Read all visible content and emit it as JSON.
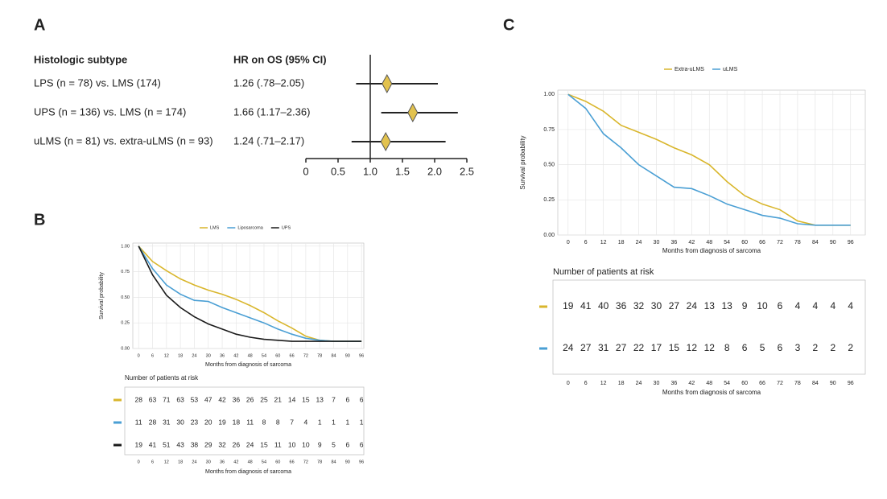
{
  "chart_data": [
    {
      "type": "forest",
      "panel": "A",
      "headers": [
        "Histologic subtype",
        "HR on OS (95% CI)"
      ],
      "categories": [
        "LPS (n = 78) vs. LMS (174)",
        "UPS (n = 136) vs. LMS (n = 174)",
        "uLMS (n = 81) vs. extra-uLMS (n = 93)"
      ],
      "values": [
        1.26,
        1.66,
        1.24
      ],
      "value_labels": [
        "1.26 (.78–2.05)",
        "1.66 (1.17–2.36)",
        "1.24 (.71–2.17)"
      ],
      "lower": [
        0.78,
        1.17,
        0.71
      ],
      "upper": [
        2.05,
        2.36,
        2.17
      ],
      "reference_line": 1,
      "color": "#e2c24e",
      "xlim": [
        0,
        2.5
      ],
      "xticks": [
        0,
        0.5,
        {
          "value": 1,
          "label": "1.0"
        },
        1.5,
        {
          "value": 2,
          "label": "2.0"
        },
        2.5
      ]
    },
    {
      "type": "km",
      "panel": "B",
      "x": [
        0,
        6,
        12,
        18,
        24,
        30,
        36,
        42,
        48,
        54,
        60,
        66,
        72,
        78,
        84,
        90,
        96
      ],
      "xlim": [
        -2.5,
        97
      ],
      "xticks": [
        0,
        6,
        12,
        18,
        24,
        30,
        36,
        42,
        48,
        54,
        60,
        66,
        72,
        78,
        84,
        90,
        96
      ],
      "ylim": [
        0,
        1.03
      ],
      "yticks": [
        {
          "value": 0,
          "label": "0.00"
        },
        0.25,
        {
          "value": 0.5,
          "label": "0.50"
        },
        0.75,
        {
          "value": 1,
          "label": "1.00"
        }
      ],
      "grid": true,
      "legend_position": "top",
      "xlabel": "Months from diagnosis of sarcoma",
      "ylabel": "Survival probability",
      "risk_table_title": "Number of patients at risk",
      "series": [
        {
          "name": "LMS",
          "color": "#d9b62c",
          "values": [
            1.0,
            0.85,
            0.76,
            0.68,
            0.62,
            0.57,
            0.53,
            0.48,
            0.42,
            0.35,
            0.27,
            0.2,
            0.12,
            0.08,
            0.07,
            0.07,
            0.07
          ],
          "at_risk": [
            28,
            63,
            71,
            63,
            53,
            47,
            42,
            36,
            26,
            25,
            21,
            14,
            15,
            13,
            7,
            6,
            6
          ]
        },
        {
          "name": "Liposarcoma",
          "color": "#4a9fd4",
          "values": [
            1.0,
            0.78,
            0.62,
            0.53,
            0.47,
            0.46,
            0.4,
            0.35,
            0.3,
            0.25,
            0.19,
            0.14,
            0.1,
            0.08,
            0.07,
            0.07,
            0.07
          ],
          "at_risk": [
            11,
            28,
            31,
            30,
            23,
            20,
            19,
            18,
            11,
            8,
            8,
            7,
            4,
            1,
            1,
            1,
            1
          ]
        },
        {
          "name": "UPS",
          "color": "#1a1a1a",
          "values": [
            1.0,
            0.72,
            0.52,
            0.4,
            0.31,
            0.24,
            0.19,
            0.14,
            0.11,
            0.09,
            0.08,
            0.07,
            0.07,
            0.07,
            0.07,
            0.07,
            0.07
          ],
          "at_risk": [
            19,
            41,
            51,
            43,
            38,
            29,
            32,
            26,
            24,
            15,
            11,
            10,
            10,
            9,
            5,
            6,
            6
          ]
        }
      ]
    },
    {
      "type": "km",
      "panel": "C",
      "x": [
        0,
        6,
        12,
        18,
        24,
        30,
        36,
        42,
        48,
        54,
        60,
        66,
        72,
        78,
        84,
        90,
        96
      ],
      "xlim": [
        -3.5,
        101
      ],
      "xticks": [
        0,
        6,
        12,
        18,
        24,
        30,
        36,
        42,
        48,
        54,
        60,
        66,
        72,
        78,
        84,
        90,
        96
      ],
      "ylim": [
        0,
        1.03
      ],
      "yticks": [
        {
          "value": 0,
          "label": "0.00"
        },
        0.25,
        {
          "value": 0.5,
          "label": "0.50"
        },
        0.75,
        {
          "value": 1,
          "label": "1.00"
        }
      ],
      "grid": true,
      "legend_position": "top",
      "xlabel": "Months from diagnosis of sarcoma",
      "ylabel": "Survival probability",
      "risk_table_title": "Number of patients at risk",
      "series": [
        {
          "name": "Extra-uLMS",
          "color": "#d9b62c",
          "values": [
            1.0,
            0.95,
            0.88,
            0.78,
            0.73,
            0.68,
            0.62,
            0.57,
            0.5,
            0.38,
            0.28,
            0.22,
            0.18,
            0.1,
            0.07,
            0.07,
            0.07
          ],
          "at_risk": [
            19,
            41,
            40,
            36,
            32,
            30,
            27,
            24,
            13,
            13,
            9,
            10,
            6,
            4,
            4,
            4,
            4
          ]
        },
        {
          "name": "uLMS",
          "color": "#4a9fd4",
          "values": [
            1.0,
            0.9,
            0.72,
            0.62,
            0.5,
            0.42,
            0.34,
            0.33,
            0.28,
            0.22,
            0.18,
            0.14,
            0.12,
            0.08,
            0.07,
            0.07,
            0.07
          ],
          "at_risk": [
            24,
            27,
            31,
            27,
            22,
            17,
            15,
            12,
            12,
            8,
            6,
            5,
            6,
            3,
            2,
            2,
            2
          ]
        }
      ]
    }
  ]
}
